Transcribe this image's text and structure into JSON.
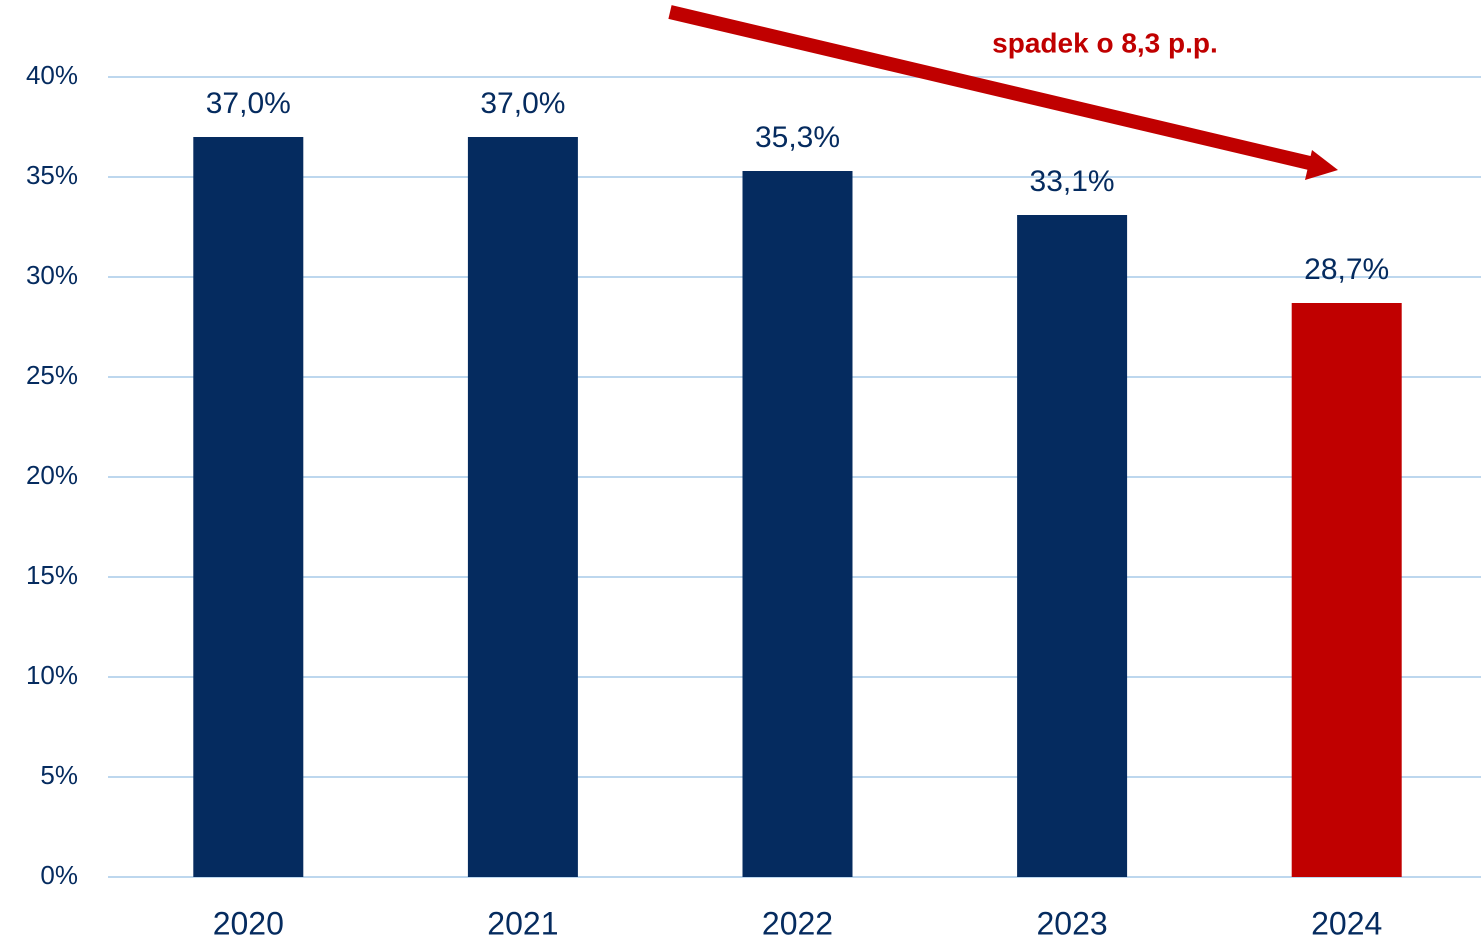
{
  "chart_data": {
    "type": "bar",
    "categories": [
      "2020",
      "2021",
      "2022",
      "2023",
      "2024"
    ],
    "values": [
      37.0,
      37.0,
      35.3,
      33.1,
      28.7
    ],
    "value_labels": [
      "37,0%",
      "37,0%",
      "35,3%",
      "33,1%",
      "28,7%"
    ],
    "colors": [
      "#052b5f",
      "#052b5f",
      "#052b5f",
      "#052b5f",
      "#c00000"
    ],
    "ylim": [
      0,
      40
    ],
    "yticks": [
      {
        "value": 0,
        "label": "0%"
      },
      {
        "value": 5,
        "label": "5%"
      },
      {
        "value": 10,
        "label": "10%"
      },
      {
        "value": 15,
        "label": "15%"
      },
      {
        "value": 20,
        "label": "20%"
      },
      {
        "value": 25,
        "label": "25%"
      },
      {
        "value": 30,
        "label": "30%"
      },
      {
        "value": 35,
        "label": "35%"
      },
      {
        "value": 40,
        "label": "40%"
      }
    ],
    "grid": true,
    "annotation": "spadek o 8,3 p.p."
  }
}
